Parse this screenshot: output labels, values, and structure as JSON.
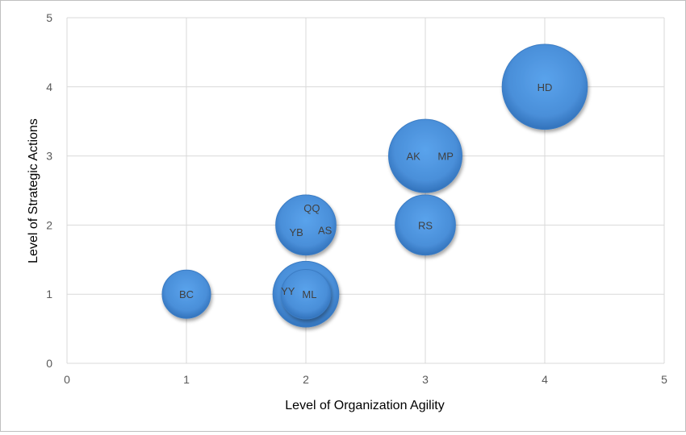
{
  "chart_data": {
    "type": "scatter",
    "subtype": "bubble",
    "title": "",
    "xlabel": "Level of Organization Agility",
    "ylabel": "Level of Strategic Actions",
    "xlim": [
      0,
      5
    ],
    "ylim": [
      0,
      5
    ],
    "xticks": [
      "0",
      "1",
      "2",
      "3",
      "4",
      "5"
    ],
    "yticks": [
      "0",
      "1",
      "2",
      "3",
      "4",
      "5"
    ],
    "grid": true,
    "legend": "none",
    "bubble_color": "#4a8fd9",
    "bubbles": [
      {
        "x": 1,
        "y": 1,
        "size": 1.0
      },
      {
        "x": 2,
        "y": 1,
        "size": 1.85
      },
      {
        "x": 2,
        "y": 1,
        "size": 1.05
      },
      {
        "x": 2,
        "y": 2,
        "size": 1.55
      },
      {
        "x": 3,
        "y": 2,
        "size": 1.55
      },
      {
        "x": 3,
        "y": 3,
        "size": 2.3
      },
      {
        "x": 4,
        "y": 4,
        "size": 3.1
      }
    ],
    "labels": [
      {
        "text": "BC",
        "x": 1.0,
        "y": 1.0
      },
      {
        "text": "YY",
        "x": 1.85,
        "y": 1.05
      },
      {
        "text": "ML",
        "x": 2.03,
        "y": 1.0
      },
      {
        "text": "QQ",
        "x": 2.05,
        "y": 2.25
      },
      {
        "text": "YB",
        "x": 1.92,
        "y": 1.9
      },
      {
        "text": "AS",
        "x": 2.16,
        "y": 1.93
      },
      {
        "text": "AK",
        "x": 2.9,
        "y": 3.0
      },
      {
        "text": "MP",
        "x": 3.17,
        "y": 3.0
      },
      {
        "text": "RS",
        "x": 3.0,
        "y": 2.0
      },
      {
        "text": "HD",
        "x": 4.0,
        "y": 4.0
      }
    ]
  }
}
